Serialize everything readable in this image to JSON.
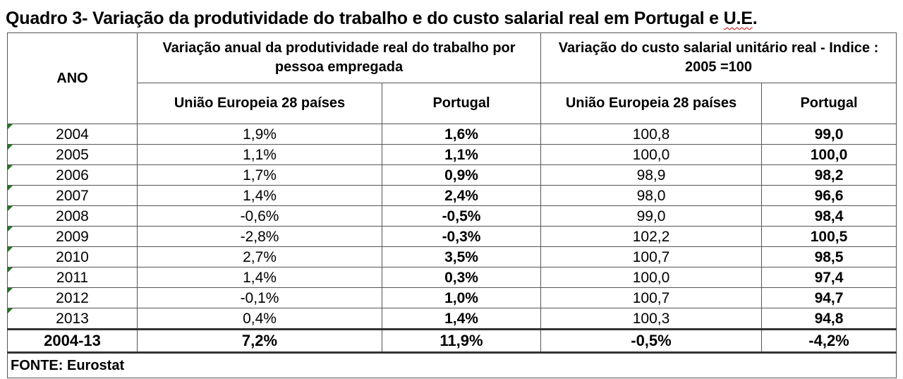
{
  "title": {
    "prefix": "Quadro 3- Variação da produtividade do trabalho e do custo salarial real em Portugal e ",
    "suffix": "U.E",
    "end": "."
  },
  "header": {
    "ano": "ANO",
    "group1": "Variação anual da produtividade real do trabalho por pessoa empregada",
    "group2": "Variação do custo salarial unitário real - Indice : 2005 =100",
    "eu": "União Europeia 28 países",
    "pt": "Portugal",
    "eu2": "União Europeia 28 países",
    "pt2": "Portugal"
  },
  "rows": [
    {
      "ano": "2004",
      "eu_prod": "1,9%",
      "pt_prod": "1,6%",
      "eu_cost": "100,8",
      "pt_cost": "99,0"
    },
    {
      "ano": "2005",
      "eu_prod": "1,1%",
      "pt_prod": "1,1%",
      "eu_cost": "100,0",
      "pt_cost": "100,0"
    },
    {
      "ano": "2006",
      "eu_prod": "1,7%",
      "pt_prod": "0,9%",
      "eu_cost": "98,9",
      "pt_cost": "98,2"
    },
    {
      "ano": "2007",
      "eu_prod": "1,4%",
      "pt_prod": "2,4%",
      "eu_cost": "98,0",
      "pt_cost": "96,6"
    },
    {
      "ano": "2008",
      "eu_prod": "-0,6%",
      "pt_prod": "-0,5%",
      "eu_cost": "99,0",
      "pt_cost": "98,4"
    },
    {
      "ano": "2009",
      "eu_prod": "-2,8%",
      "pt_prod": "-0,3%",
      "eu_cost": "102,2",
      "pt_cost": "100,5"
    },
    {
      "ano": "2010",
      "eu_prod": "2,7%",
      "pt_prod": "3,5%",
      "eu_cost": "100,7",
      "pt_cost": "98,5"
    },
    {
      "ano": "2011",
      "eu_prod": "1,4%",
      "pt_prod": "0,3%",
      "eu_cost": "100,0",
      "pt_cost": "97,4"
    },
    {
      "ano": "2012",
      "eu_prod": "-0,1%",
      "pt_prod": "1,0%",
      "eu_cost": "100,7",
      "pt_cost": "94,7"
    },
    {
      "ano": "2013",
      "eu_prod": "0,4%",
      "pt_prod": "1,4%",
      "eu_cost": "100,3",
      "pt_cost": "94,8"
    }
  ],
  "total": {
    "ano": "2004-13",
    "eu_prod": "7,2%",
    "pt_prod": "11,9%",
    "eu_cost": "-0,5%",
    "pt_cost": "-4,2%"
  },
  "source": "FONTE: Eurostat",
  "colors": {
    "cell_marker": "#1f7a1f",
    "spellcheck_underline": "#cc0000"
  }
}
